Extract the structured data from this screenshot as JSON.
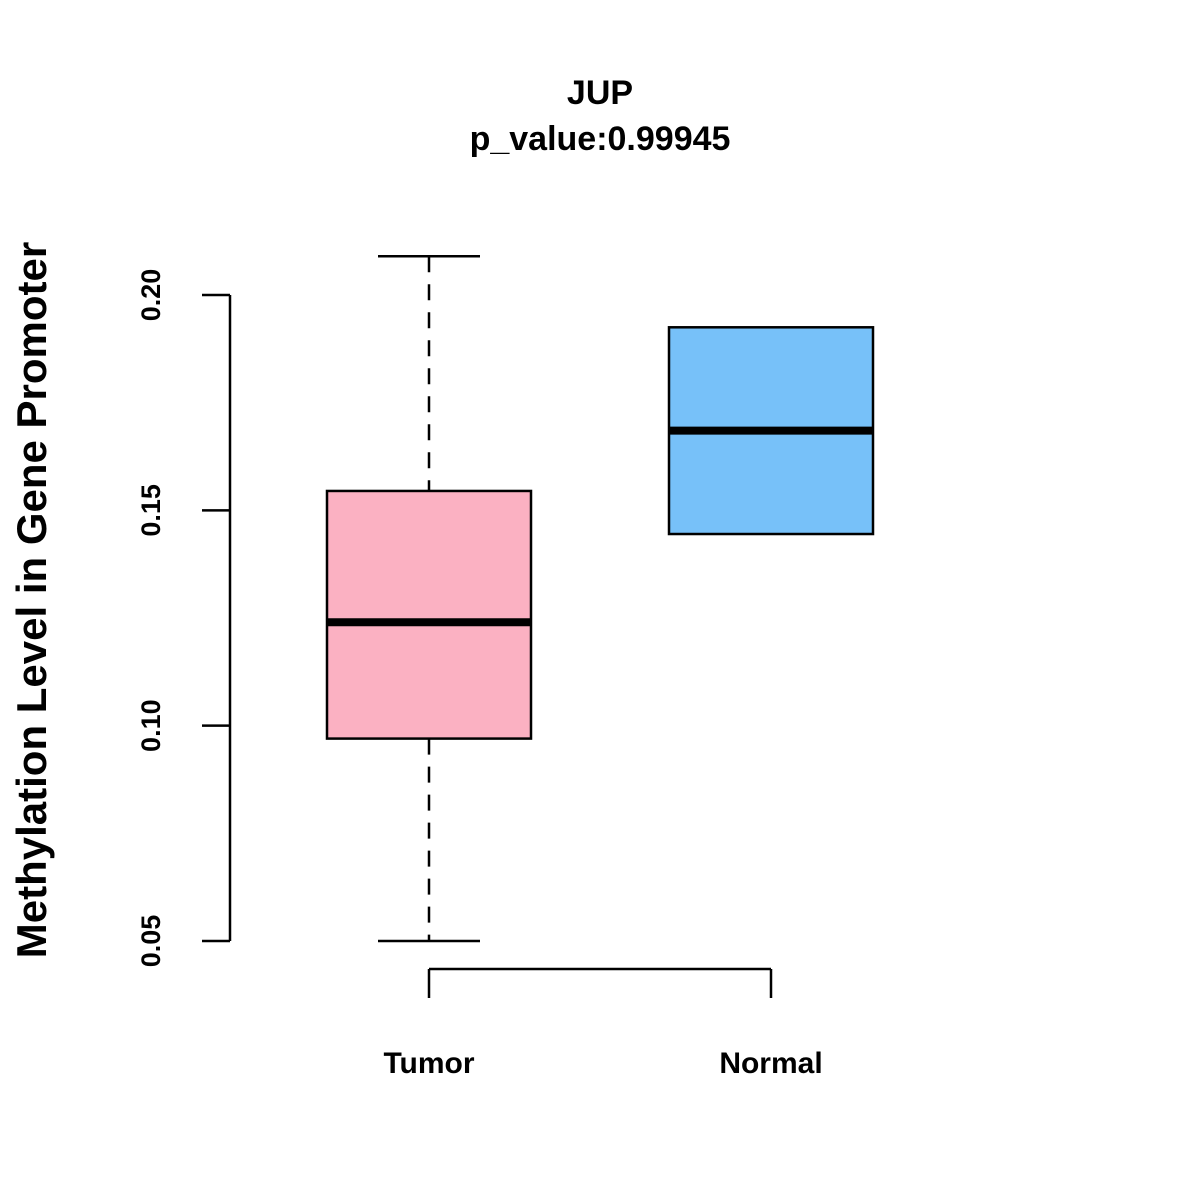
{
  "chart_data": {
    "type": "boxplot",
    "title": "JUP",
    "subtitle": "p_value:0.99945",
    "xlabel": "",
    "ylabel": "Methylation Level in Gene Promoter",
    "ylim": [
      0.04,
      0.21
    ],
    "yticks": [
      0.05,
      0.1,
      0.15,
      0.2
    ],
    "ytick_labels": [
      "0.05",
      "0.10",
      "0.15",
      "0.20"
    ],
    "categories": [
      "Tumor",
      "Normal"
    ],
    "boxes": [
      {
        "name": "Tumor",
        "whisker_low": 0.05,
        "q1": 0.097,
        "median": 0.124,
        "q3": 0.1545,
        "whisker_high": 0.209,
        "color": "#FBB1C2"
      },
      {
        "name": "Normal",
        "whisker_low": 0.1445,
        "q1": 0.1445,
        "median": 0.1685,
        "q3": 0.1925,
        "whisker_high": 0.1925,
        "color": "#77C1F9"
      }
    ],
    "grid": false,
    "legend": "none"
  }
}
